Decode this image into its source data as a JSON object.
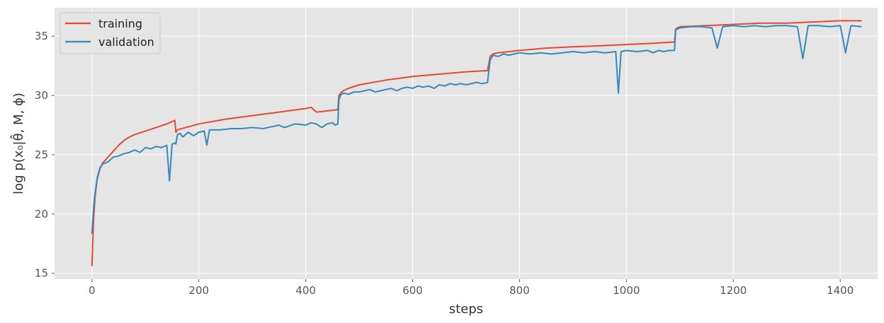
{
  "chart_data": {
    "type": "line",
    "xlabel": "steps",
    "ylabel": "log p(x₀|θ̂, M, ϕ)",
    "xlim": [
      -70,
      1470
    ],
    "ylim": [
      14.5,
      37.4
    ],
    "xticks": [
      0,
      200,
      400,
      600,
      800,
      1000,
      1200,
      1400
    ],
    "yticks": [
      15,
      20,
      25,
      30,
      35
    ],
    "grid": true,
    "legend_position": "top-left",
    "series": [
      {
        "name": "training",
        "color": "#E24A33",
        "x": [
          0,
          3,
          6,
          10,
          15,
          20,
          30,
          40,
          50,
          60,
          70,
          80,
          100,
          120,
          140,
          150,
          155,
          157,
          160,
          200,
          250,
          300,
          350,
          400,
          410,
          420,
          440,
          460,
          462,
          465,
          470,
          480,
          500,
          550,
          600,
          650,
          700,
          740,
          745,
          748,
          750,
          760,
          800,
          850,
          900,
          950,
          1000,
          1050,
          1085,
          1090,
          1092,
          1095,
          1100,
          1150,
          1200,
          1250,
          1300,
          1350,
          1400,
          1440
        ],
        "y": [
          15.6,
          19.5,
          21.5,
          23.0,
          23.8,
          24.3,
          24.8,
          25.3,
          25.8,
          26.2,
          26.5,
          26.7,
          27.0,
          27.3,
          27.6,
          27.8,
          27.9,
          26.9,
          27.1,
          27.6,
          28.0,
          28.3,
          28.6,
          28.9,
          29.0,
          28.6,
          28.7,
          28.8,
          30.0,
          30.2,
          30.4,
          30.6,
          30.9,
          31.3,
          31.6,
          31.8,
          32.0,
          32.1,
          33.3,
          33.4,
          33.5,
          33.6,
          33.8,
          34.0,
          34.1,
          34.2,
          34.3,
          34.4,
          34.5,
          34.5,
          35.6,
          35.7,
          35.8,
          35.9,
          36.0,
          36.1,
          36.1,
          36.2,
          36.3,
          36.3
        ]
      },
      {
        "name": "validation",
        "color": "#348ABD",
        "x": [
          0,
          3,
          6,
          10,
          15,
          20,
          30,
          40,
          50,
          60,
          70,
          80,
          90,
          100,
          110,
          120,
          130,
          140,
          145,
          150,
          155,
          157,
          160,
          165,
          170,
          180,
          190,
          200,
          210,
          215,
          220,
          240,
          260,
          280,
          300,
          320,
          340,
          350,
          360,
          380,
          400,
          410,
          420,
          430,
          440,
          450,
          455,
          460,
          462,
          465,
          470,
          480,
          490,
          500,
          510,
          520,
          530,
          540,
          550,
          560,
          570,
          580,
          590,
          600,
          610,
          620,
          630,
          640,
          650,
          660,
          670,
          680,
          690,
          700,
          710,
          720,
          730,
          740,
          745,
          748,
          750,
          760,
          770,
          780,
          790,
          800,
          820,
          840,
          860,
          880,
          900,
          920,
          940,
          960,
          980,
          985,
          990,
          1000,
          1020,
          1040,
          1050,
          1060,
          1070,
          1080,
          1090,
          1092,
          1095,
          1100,
          1120,
          1140,
          1160,
          1170,
          1180,
          1200,
          1220,
          1240,
          1260,
          1280,
          1300,
          1320,
          1330,
          1340,
          1360,
          1380,
          1400,
          1410,
          1420,
          1440
        ],
        "y": [
          18.3,
          20.5,
          21.8,
          23.1,
          23.9,
          24.2,
          24.4,
          24.8,
          24.9,
          25.1,
          25.2,
          25.4,
          25.2,
          25.6,
          25.5,
          25.7,
          25.6,
          25.8,
          22.8,
          25.9,
          26.0,
          25.9,
          26.7,
          26.8,
          26.5,
          26.9,
          26.6,
          26.9,
          27.0,
          25.8,
          27.1,
          27.1,
          27.2,
          27.2,
          27.3,
          27.2,
          27.4,
          27.5,
          27.3,
          27.6,
          27.5,
          27.7,
          27.6,
          27.3,
          27.6,
          27.7,
          27.5,
          27.6,
          29.6,
          30.0,
          30.2,
          30.1,
          30.3,
          30.3,
          30.4,
          30.5,
          30.3,
          30.4,
          30.5,
          30.6,
          30.4,
          30.6,
          30.7,
          30.6,
          30.8,
          30.7,
          30.8,
          30.6,
          30.9,
          30.8,
          31.0,
          30.9,
          31.0,
          30.9,
          31.0,
          31.1,
          31.0,
          31.1,
          33.0,
          33.2,
          33.4,
          33.3,
          33.5,
          33.4,
          33.5,
          33.6,
          33.5,
          33.6,
          33.5,
          33.6,
          33.7,
          33.6,
          33.7,
          33.6,
          33.7,
          30.2,
          33.7,
          33.8,
          33.7,
          33.8,
          33.6,
          33.8,
          33.7,
          33.8,
          33.8,
          35.5,
          35.6,
          35.7,
          35.8,
          35.8,
          35.7,
          34.0,
          35.8,
          35.9,
          35.8,
          35.9,
          35.8,
          35.9,
          35.9,
          35.8,
          33.1,
          35.9,
          35.9,
          35.8,
          35.9,
          33.6,
          35.9,
          35.8
        ]
      }
    ]
  }
}
